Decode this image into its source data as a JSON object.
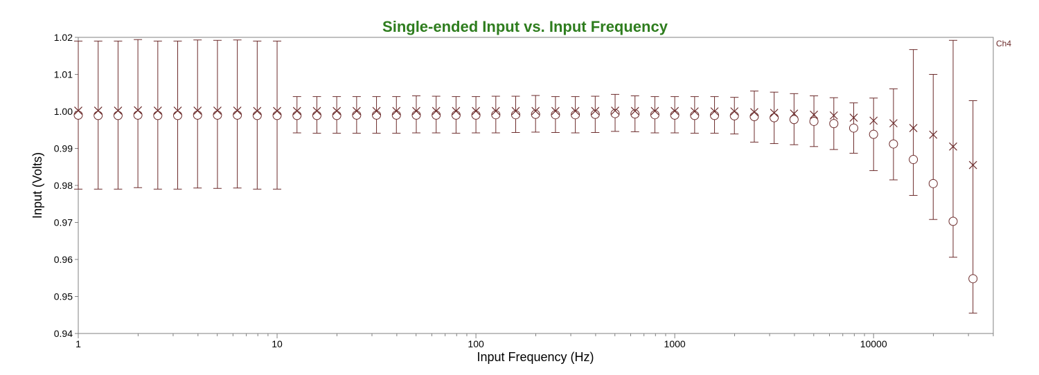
{
  "chart_data": {
    "type": "scatter",
    "title": "Single-ended Input vs. Input Frequency",
    "xlabel": "Input Frequency (Hz)",
    "ylabel": "Input (Volts)",
    "x_scale": "log",
    "xlim": [
      1,
      40000
    ],
    "ylim": [
      0.94,
      1.02
    ],
    "x_ticks": [
      1,
      10,
      100,
      1000,
      10000
    ],
    "x_tick_labels": [
      "1",
      "10",
      "100",
      "1000",
      "10000"
    ],
    "y_ticks": [
      0.94,
      0.95,
      0.96,
      0.97,
      0.98,
      0.99,
      1.0,
      1.01,
      1.02
    ],
    "y_tick_labels": [
      "0.94",
      "0.95",
      "0.96",
      "0.97",
      "0.98",
      "0.99",
      "1.00",
      "1.01",
      "1.02"
    ],
    "legend": {
      "label": "Ch4",
      "position": "top-right"
    },
    "colors": {
      "title": "#2e7d1e",
      "series": "#6b2a2a",
      "frame": "#808080"
    },
    "grid": false,
    "x": [
      1,
      1.259,
      1.585,
      1.995,
      2.512,
      3.162,
      3.981,
      5.012,
      6.31,
      7.943,
      10,
      12.59,
      15.85,
      19.95,
      25.12,
      31.62,
      39.81,
      50.12,
      63.1,
      79.43,
      100,
      125.9,
      158.5,
      199.5,
      251.2,
      316.2,
      398.1,
      501.2,
      631,
      794.3,
      1000,
      1259,
      1585,
      1995,
      2512,
      3162,
      3981,
      5012,
      6310,
      7943,
      10000,
      12590,
      15850,
      19950,
      25120,
      31620
    ],
    "series": [
      {
        "marker": "x",
        "values": [
          1.0002,
          1.0002,
          1.0002,
          1.0003,
          1.0002,
          1.0002,
          1.0002,
          1.0002,
          1.0002,
          1.0001,
          1.0001,
          1.0001,
          1.0001,
          1.0001,
          1.0001,
          1.0001,
          1.0001,
          1.0001,
          1.0001,
          1.0001,
          1.0001,
          1.0001,
          1.0001,
          1.0001,
          1.0001,
          1.0001,
          1.0001,
          1.0002,
          1.0001,
          1.0001,
          1.0001,
          1.0,
          1.0,
          1.0,
          0.9998,
          0.9996,
          0.9994,
          0.9991,
          0.9989,
          0.9983,
          0.9975,
          0.9968,
          0.9955,
          0.9937,
          0.9905,
          0.9855
        ]
      },
      {
        "marker": "o",
        "values": [
          0.999,
          0.9989,
          0.9989,
          0.999,
          0.9989,
          0.9989,
          0.999,
          0.999,
          0.999,
          0.9989,
          0.9989,
          0.9989,
          0.9989,
          0.9989,
          0.999,
          0.999,
          0.999,
          0.999,
          0.999,
          0.999,
          0.999,
          0.9991,
          0.9991,
          0.9992,
          0.9991,
          0.9991,
          0.9992,
          0.9994,
          0.9993,
          0.9991,
          0.999,
          0.9989,
          0.9989,
          0.9988,
          0.9986,
          0.9983,
          0.9978,
          0.9973,
          0.9967,
          0.9955,
          0.9938,
          0.9912,
          0.987,
          0.9805,
          0.9703,
          0.9548
        ],
        "err_low": [
          0.979,
          0.979,
          0.979,
          0.9794,
          0.979,
          0.979,
          0.9793,
          0.9792,
          0.9793,
          0.979,
          0.979,
          0.9942,
          0.9941,
          0.9941,
          0.9941,
          0.9941,
          0.9941,
          0.9942,
          0.9942,
          0.9941,
          0.9942,
          0.9942,
          0.9943,
          0.9944,
          0.9943,
          0.9942,
          0.9943,
          0.9946,
          0.9945,
          0.9942,
          0.9942,
          0.9941,
          0.9941,
          0.9939,
          0.9917,
          0.9913,
          0.991,
          0.9905,
          0.9897,
          0.9887,
          0.984,
          0.9815,
          0.9773,
          0.9708,
          0.9606,
          0.9455
        ],
        "err_high": [
          1.019,
          1.019,
          1.019,
          1.0194,
          1.019,
          1.019,
          1.0193,
          1.0192,
          1.0193,
          1.019,
          1.019,
          1.004,
          1.004,
          1.004,
          1.004,
          1.004,
          1.004,
          1.0042,
          1.0041,
          1.004,
          1.004,
          1.0041,
          1.0041,
          1.0043,
          1.004,
          1.004,
          1.0041,
          1.0046,
          1.0042,
          1.004,
          1.004,
          1.004,
          1.004,
          1.0038,
          1.0055,
          1.0052,
          1.0048,
          1.0042,
          1.0037,
          1.0023,
          1.0036,
          1.0061,
          1.0167,
          1.01,
          1.0192,
          1.0029
        ]
      }
    ]
  }
}
